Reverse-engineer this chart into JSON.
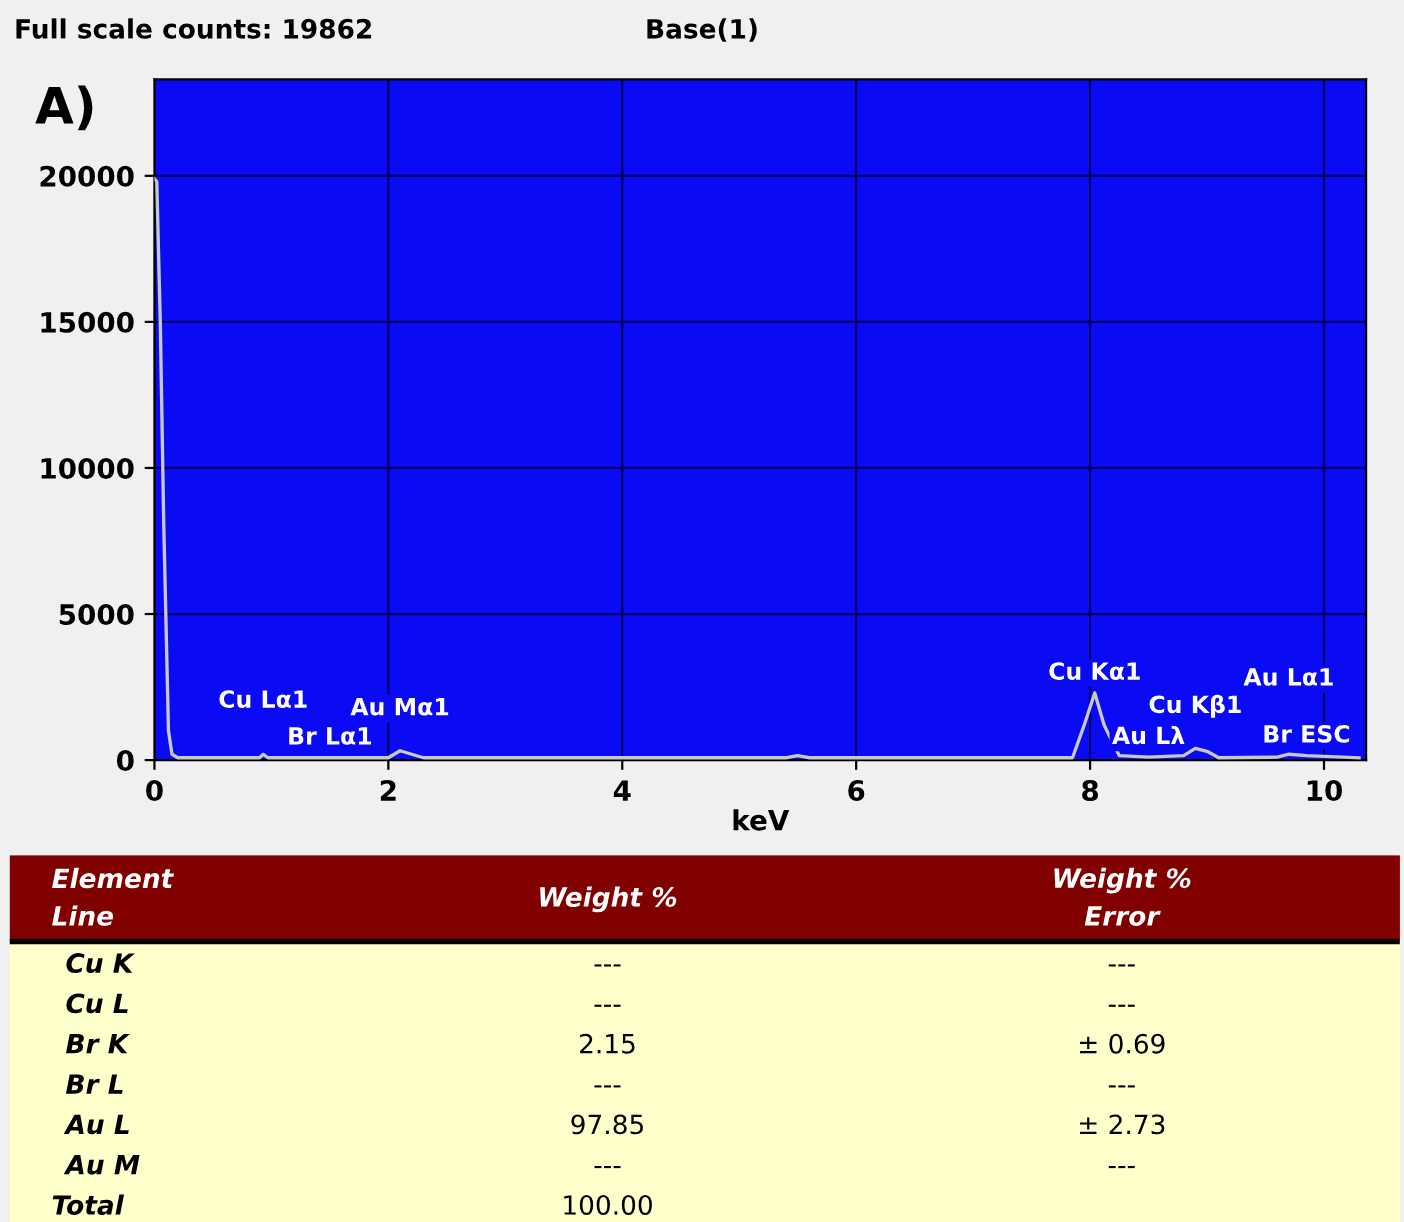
{
  "chart_data": [
    {
      "type": "line",
      "title": "Full scale counts: 19862",
      "subtitle": "Base(1)",
      "xlabel": "keV",
      "x": [
        0,
        0.02,
        0.05,
        0.08,
        0.12,
        0.15,
        0.2,
        0.9,
        0.93,
        0.97,
        1.5,
        2.0,
        2.1,
        2.2,
        2.3,
        5.4,
        5.5,
        5.6,
        7.85,
        7.95,
        8.04,
        8.12,
        8.25,
        8.5,
        8.8,
        8.9,
        9.0,
        9.1,
        9.6,
        9.7,
        9.85,
        10.3
      ],
      "series": [
        {
          "color": "#c8c8c8",
          "values": [
            19900,
            19800,
            15000,
            8000,
            1000,
            200,
            80,
            80,
            200,
            80,
            80,
            80,
            320,
            200,
            80,
            80,
            150,
            80,
            80,
            1200,
            2300,
            1200,
            150,
            100,
            150,
            400,
            300,
            80,
            100,
            200,
            150,
            80
          ]
        }
      ],
      "xlim": [
        0,
        10.36
      ],
      "ylim": [
        0,
        23300
      ],
      "xticks": [
        0,
        2,
        4,
        6,
        8,
        10
      ],
      "yticks": [
        0,
        5000,
        10000,
        15000,
        20000
      ],
      "grid": true,
      "annotations": [
        "A)",
        {
          "text": "Br Lα1",
          "x": 1.5,
          "y": 80
        },
        {
          "text": "Cu Lα1",
          "x": 0.93,
          "y": 200
        },
        {
          "text": "Au Mα1",
          "x": 2.1,
          "y": 320
        },
        {
          "text": "Cu Kα1",
          "x": 8.04,
          "y": 2300
        },
        {
          "text": "Au Lλ",
          "x": 8.5,
          "y": 100
        },
        {
          "text": "Cu Kβ1",
          "x": 8.9,
          "y": 400
        },
        {
          "text": "Br ESC",
          "x": 9.85,
          "y": 150
        },
        {
          "text": "Au Lα1",
          "x": 9.7,
          "y": 200
        }
      ]
    },
    {
      "type": "other",
      "categories": [
        "Element\nLine",
        "Weight %",
        "Weight %\nError"
      ],
      "annotations": [
        "Cu K",
        "---",
        "---",
        "Cu L",
        "---",
        "---",
        "Br K",
        "2.15",
        "± 0.69",
        "Br L",
        "---",
        "---",
        "Au L",
        "97.85",
        "± 2.73",
        "Au M",
        "---",
        "---",
        "Total",
        "100.00",
        null
      ]
    }
  ]
}
